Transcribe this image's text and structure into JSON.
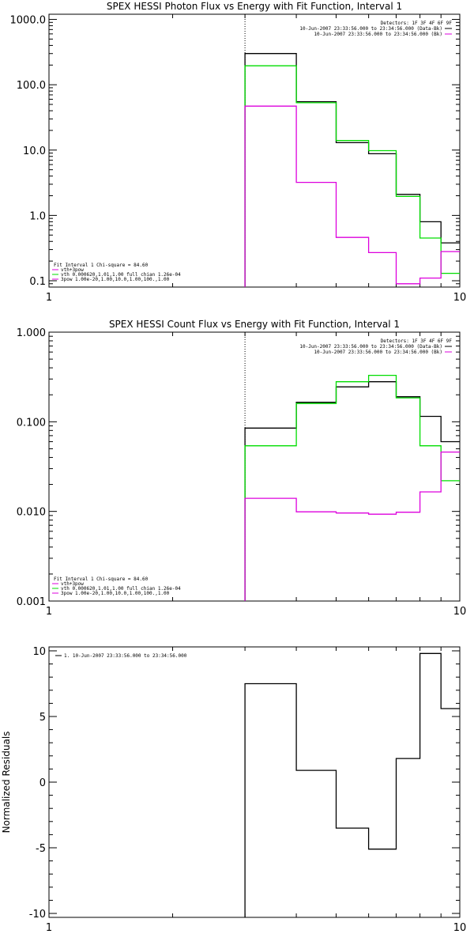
{
  "chart_data": [
    {
      "type": "line",
      "step": true,
      "title": "SPEX HESSI Photon Flux vs Energy with Fit Function, Interval 1",
      "xlabel": "",
      "ylabel": "",
      "xscale": "log",
      "yscale": "log",
      "xlim": [
        1,
        10
      ],
      "ylim": [
        0.08,
        1200
      ],
      "xticks": [
        {
          "v": 1,
          "label": "1"
        },
        {
          "v": 10,
          "label": "10"
        }
      ],
      "yticks": [
        {
          "v": 0.1,
          "label": "0.1"
        },
        {
          "v": 1,
          "label": "1.0"
        },
        {
          "v": 10,
          "label": "10.0"
        },
        {
          "v": 100,
          "label": "100.0"
        },
        {
          "v": 1000,
          "label": "1000.0"
        }
      ],
      "vline_x": 3,
      "edges": [
        3,
        4,
        5,
        6,
        7,
        8,
        9,
        10
      ],
      "series": [
        {
          "color": "#000000",
          "values": [
            300,
            55,
            13,
            8.8,
            2.1,
            0.8,
            0.38
          ]
        },
        {
          "color": "#00dd00",
          "values": [
            195,
            53,
            14,
            9.8,
            1.95,
            0.45,
            0.13
          ]
        },
        {
          "color": "#dd00dd",
          "values": [
            47,
            3.2,
            0.46,
            0.27,
            0.09,
            0.11,
            0.28
          ]
        }
      ],
      "legend_top": {
        "lines": [
          {
            "text": "Detectors: 1F 3F 4F 6F 9F",
            "color": null
          },
          {
            "text": "10-Jun-2007 23:33:56.000 to 23:34:56.000 (Data-Bk)",
            "color": "#000000"
          },
          {
            "text": "10-Jun-2007 23:33:56.000 to 23:34:56.000 (Bk)",
            "color": "#dd00dd"
          }
        ]
      },
      "legend_bottom": {
        "lines": [
          {
            "text": "Fit Interval 1    Chi-square = 84.60",
            "color": null
          },
          {
            "text": "vth+3pow",
            "color": "#dd00dd"
          },
          {
            "text": "vth 0.000620,1.01,1.00  full chian 1.26e-04",
            "color": "#00dd00"
          },
          {
            "text": "3pow 1.00e-20,1.00,10.0,1.00,100.,1.00",
            "color": "#dd00dd"
          }
        ]
      }
    },
    {
      "type": "line",
      "step": true,
      "title": "SPEX HESSI Count Flux vs Energy with Fit Function, Interval 1",
      "xlabel": "",
      "ylabel": "",
      "xscale": "log",
      "yscale": "log",
      "xlim": [
        1,
        10
      ],
      "ylim": [
        0.001,
        1.0
      ],
      "xticks": [
        {
          "v": 1,
          "label": "1"
        },
        {
          "v": 10,
          "label": "10"
        }
      ],
      "yticks": [
        {
          "v": 0.001,
          "label": "0.001"
        },
        {
          "v": 0.01,
          "label": "0.010"
        },
        {
          "v": 0.1,
          "label": "0.100"
        },
        {
          "v": 1.0,
          "label": "1.000"
        }
      ],
      "vline_x": 3,
      "edges": [
        3,
        4,
        5,
        6,
        7,
        8,
        9,
        10
      ],
      "series": [
        {
          "color": "#000000",
          "values": [
            0.085,
            0.165,
            0.245,
            0.28,
            0.19,
            0.115,
            0.06
          ]
        },
        {
          "color": "#00dd00",
          "values": [
            0.054,
            0.16,
            0.28,
            0.33,
            0.185,
            0.054,
            0.022
          ]
        },
        {
          "color": "#dd00dd",
          "values": [
            0.014,
            0.0099,
            0.0096,
            0.0093,
            0.0098,
            0.0165,
            0.046
          ]
        }
      ],
      "legend_top": {
        "lines": [
          {
            "text": "Detectors: 1F 3F 4F 6F 9F",
            "color": null
          },
          {
            "text": "10-Jun-2007 23:33:56.000 to 23:34:56.000 (Data-Bk)",
            "color": "#000000"
          },
          {
            "text": "10-Jun-2007 23:33:56.000 to 23:34:56.000 (Bk)",
            "color": "#dd00dd"
          }
        ]
      },
      "legend_bottom": {
        "lines": [
          {
            "text": "Fit Interval 1    Chi-square = 84.60",
            "color": null
          },
          {
            "text": "vth+3pow",
            "color": "#dd00dd"
          },
          {
            "text": "vth 0.000620,1.01,1.00  full chian 1.26e-04",
            "color": "#00dd00"
          },
          {
            "text": "3pow 1.00e-20,1.00,10.0,1.00,100.,1.00",
            "color": "#dd00dd"
          }
        ]
      }
    },
    {
      "type": "line",
      "step": true,
      "title": "",
      "xlabel": "",
      "ylabel": "Normalized Residuals",
      "xscale": "log",
      "yscale": "linear",
      "xlim": [
        1,
        10
      ],
      "ylim": [
        -10.3,
        10.3
      ],
      "xticks": [
        {
          "v": 1,
          "label": "1"
        },
        {
          "v": 10,
          "label": "10"
        }
      ],
      "yticks": [
        {
          "v": -10,
          "label": "-10"
        },
        {
          "v": -5,
          "label": "-5"
        },
        {
          "v": 0,
          "label": "0"
        },
        {
          "v": 5,
          "label": "5"
        },
        {
          "v": 10,
          "label": "10"
        }
      ],
      "edges": [
        3,
        4,
        5,
        6,
        7,
        8,
        9,
        10
      ],
      "series": [
        {
          "color": "#000000",
          "values": [
            7.5,
            0.9,
            -3.5,
            -5.1,
            1.8,
            9.8,
            5.6
          ]
        }
      ],
      "legend_top": {
        "lines": [
          {
            "text": "1. 10-Jun-2007 23:33:56.000 to 23:34:56.000",
            "color": "#000000"
          }
        ]
      }
    }
  ]
}
